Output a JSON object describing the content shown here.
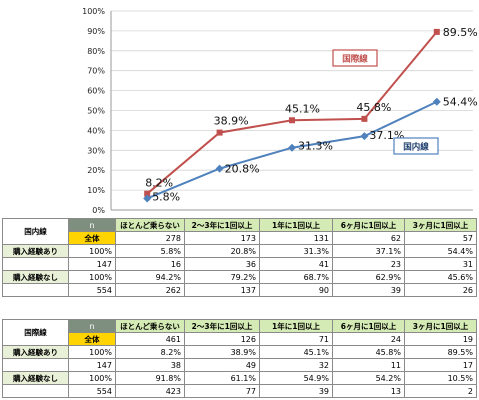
{
  "chart_data": {
    "type": "line",
    "x": [
      "ほとんど乗らない",
      "2～3年に1回以上",
      "1年に1回以上",
      "6ヶ月に1回以上",
      "3ヶ月に1回以上"
    ],
    "ylim": [
      0,
      100
    ],
    "y_ticks": [
      "0%",
      "10%",
      "20%",
      "30%",
      "40%",
      "50%",
      "60%",
      "70%",
      "80%",
      "90%",
      "100%"
    ],
    "series": [
      {
        "name": "国際線",
        "color": "#c0504d",
        "values": [
          8.2,
          38.9,
          45.1,
          45.8,
          89.5
        ],
        "labels": [
          "8.2%",
          "38.9%",
          "45.1%",
          "45.8%",
          "89.5%"
        ]
      },
      {
        "name": "国内線",
        "color": "#4f81bd",
        "values": [
          5.8,
          20.8,
          31.3,
          37.1,
          54.4
        ],
        "labels": [
          "5.8%",
          "20.8%",
          "31.3%",
          "37.1%",
          "54.4%"
        ]
      }
    ]
  },
  "tables": [
    {
      "section": "国内線",
      "n_header": "n",
      "columns": [
        "ほとんど乗らない",
        "2～3年に1回以上",
        "1年に1回以上",
        "6ヶ月に1回以上",
        "3ヶ月に1回以上"
      ],
      "total": {
        "label": "全体",
        "values": [
          "278",
          "173",
          "131",
          "62",
          "57"
        ]
      },
      "groups": [
        {
          "label": "購入経験あり",
          "pct": [
            "100%",
            "5.8%",
            "20.8%",
            "31.3%",
            "37.1%",
            "54.4%"
          ],
          "cnt": [
            "147",
            "16",
            "36",
            "41",
            "23",
            "31"
          ]
        },
        {
          "label": "購入経験なし",
          "pct": [
            "100%",
            "94.2%",
            "79.2%",
            "68.7%",
            "62.9%",
            "45.6%"
          ],
          "cnt": [
            "554",
            "262",
            "137",
            "90",
            "39",
            "26"
          ]
        }
      ]
    },
    {
      "section": "国際線",
      "n_header": "n",
      "columns": [
        "ほとんど乗らない",
        "2～3年に1回以上",
        "1年に1回以上",
        "6ヶ月に1回以上",
        "3ヶ月に1回以上"
      ],
      "total": {
        "label": "全体",
        "values": [
          "461",
          "126",
          "71",
          "24",
          "19"
        ]
      },
      "groups": [
        {
          "label": "購入経験あり",
          "pct": [
            "100%",
            "8.2%",
            "38.9%",
            "45.1%",
            "45.8%",
            "89.5%"
          ],
          "cnt": [
            "147",
            "38",
            "49",
            "32",
            "11",
            "17"
          ]
        },
        {
          "label": "購入経験なし",
          "pct": [
            "100%",
            "91.8%",
            "61.1%",
            "54.9%",
            "54.2%",
            "10.5%"
          ],
          "cnt": [
            "554",
            "423",
            "77",
            "39",
            "13",
            "2"
          ]
        }
      ]
    }
  ]
}
